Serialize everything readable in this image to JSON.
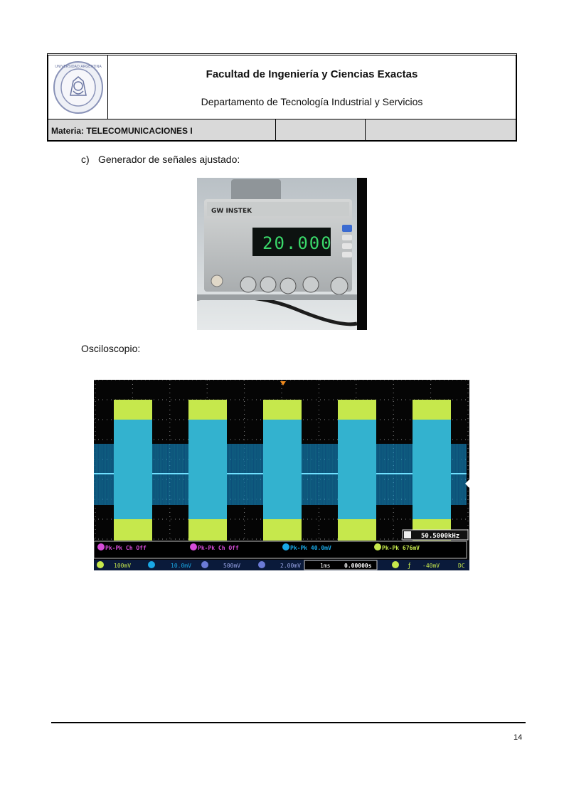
{
  "header": {
    "faculty": "Facultad de Ingeniería y Ciencias Exactas",
    "department": "Departamento de Tecnología Industrial y Servicios",
    "subject": "Materia: TELECOMUNICACIONES I",
    "cell2": "",
    "cell3": ""
  },
  "content": {
    "item_c_label": "c)",
    "item_c_text": "Generador de señales ajustado:",
    "generator_display": "20.000",
    "generator_brand": "GW INSTEK",
    "oscilloscope_title": "Osciloscopio:"
  },
  "scope": {
    "frequency": "50.5000kHz",
    "meas1": "Pk-Pk Ch Off",
    "meas2": "Pk-Pk Ch Off",
    "meas3": "Pk-Pk 40.0mV",
    "meas4": "Pk-Pk 676mV",
    "ch1_scale": "100mV",
    "ch2_scale": "10.0mV",
    "ch3_scale": "500mV",
    "ch4_scale": "2.00mV",
    "timebase": "1ms",
    "position": "0.00000s",
    "trigger_level": "-40mV",
    "coupling": "DC"
  },
  "colors": {
    "ch1": "#c6e84c",
    "ch2": "#19a8e6",
    "grid": "#8a8a8a"
  },
  "footer": {
    "page_number": "14"
  }
}
